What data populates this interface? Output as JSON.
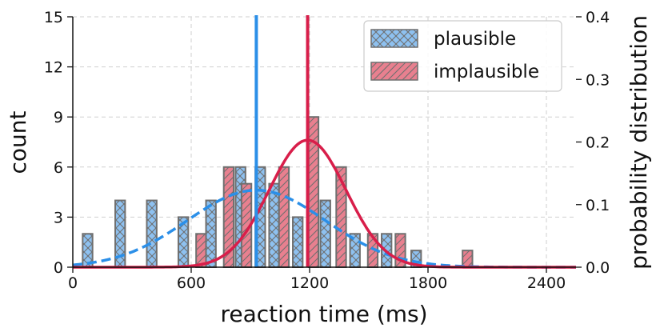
{
  "chart_data": {
    "type": "bar",
    "xlabel": "reaction time (ms)",
    "ylabel": "count",
    "y2label": "probability distribution",
    "xlim": [
      0,
      2550
    ],
    "ylim": [
      0,
      15
    ],
    "y2lim": [
      0,
      0.4
    ],
    "xticks": [
      "0",
      "600",
      "1200",
      "1800",
      "2400"
    ],
    "yticks": [
      "0",
      "3",
      "6",
      "9",
      "12",
      "15"
    ],
    "y2ticks": [
      "0.0",
      "0.1",
      "0.2",
      "0.3",
      "0.4"
    ],
    "grid": true,
    "legend_position": "top-right",
    "bin_width": 50,
    "series": [
      {
        "name": "plausible",
        "color": "#8ec1f0",
        "hatch": "crosshatch",
        "bars": [
          {
            "x": 75,
            "count": 2
          },
          {
            "x": 240,
            "count": 4
          },
          {
            "x": 400,
            "count": 4
          },
          {
            "x": 560,
            "count": 3
          },
          {
            "x": 700,
            "count": 4
          },
          {
            "x": 850,
            "count": 6
          },
          {
            "x": 950,
            "count": 6
          },
          {
            "x": 1020,
            "count": 5
          },
          {
            "x": 1140,
            "count": 3
          },
          {
            "x": 1280,
            "count": 4
          },
          {
            "x": 1430,
            "count": 2
          },
          {
            "x": 1590,
            "count": 2
          },
          {
            "x": 1740,
            "count": 1
          }
        ],
        "mean": 930,
        "line_color": "#2b8fe8",
        "density_mean": 930,
        "density_sd": 350,
        "density_peak": 0.123
      },
      {
        "name": "implausible",
        "color": "#e8808f",
        "hatch": "diagonal",
        "bars": [
          {
            "x": 650,
            "count": 2
          },
          {
            "x": 790,
            "count": 6
          },
          {
            "x": 880,
            "count": 5
          },
          {
            "x": 1070,
            "count": 6
          },
          {
            "x": 1220,
            "count": 9
          },
          {
            "x": 1360,
            "count": 6
          },
          {
            "x": 1520,
            "count": 2
          },
          {
            "x": 1660,
            "count": 2
          },
          {
            "x": 2000,
            "count": 1
          }
        ],
        "mean": 1190,
        "line_color": "#d81e4a",
        "density_mean": 1190,
        "density_sd": 195,
        "density_peak": 0.203
      }
    ]
  }
}
